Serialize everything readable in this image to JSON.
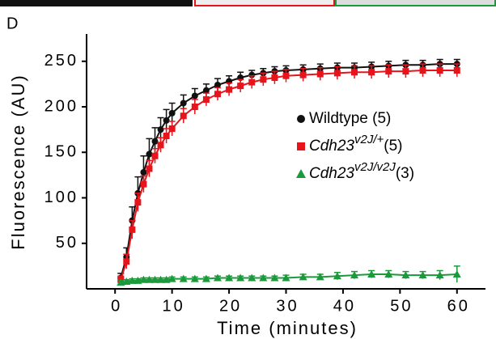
{
  "chart_data": {
    "type": "scatter",
    "panel_label": "D",
    "xlabel": "Time (minutes)",
    "ylabel": "Fluorescence (AU)",
    "xlim": [
      -5,
      65
    ],
    "ylim": [
      0,
      280
    ],
    "xticks": [
      0,
      10,
      20,
      30,
      40,
      50,
      60
    ],
    "yticks": [
      50,
      100,
      150,
      200,
      250
    ],
    "x": [
      1,
      2,
      3,
      4,
      5,
      6,
      7,
      8,
      9,
      10,
      12,
      14,
      16,
      18,
      20,
      22,
      24,
      26,
      28,
      30,
      33,
      36,
      39,
      42,
      45,
      48,
      51,
      54,
      57,
      60
    ],
    "series": [
      {
        "name": "Wildtype (5)",
        "color": "#111111",
        "marker": "circle",
        "values": [
          12,
          35,
          75,
          105,
          128,
          148,
          162,
          175,
          185,
          193,
          204,
          212,
          218,
          224,
          228,
          232,
          235,
          237,
          239,
          240,
          241,
          242,
          243,
          243,
          244,
          245,
          246,
          246,
          247,
          247
        ],
        "errors": [
          5,
          10,
          15,
          18,
          18,
          17,
          15,
          13,
          12,
          11,
          9,
          8,
          7,
          7,
          6,
          6,
          5,
          5,
          5,
          5,
          5,
          5,
          5,
          5,
          5,
          5,
          5,
          5,
          5,
          5
        ]
      },
      {
        "name": "Cdh23",
        "name_sup": "v2J/+",
        "name_suffix": "(5)",
        "color": "#e8141c",
        "marker": "square",
        "values": [
          10,
          30,
          65,
          95,
          115,
          132,
          146,
          158,
          168,
          176,
          190,
          200,
          208,
          214,
          219,
          223,
          227,
          230,
          232,
          234,
          235,
          236,
          237,
          238,
          238,
          239,
          239,
          240,
          240,
          240
        ],
        "errors": [
          4,
          8,
          10,
          10,
          9,
          9,
          8,
          8,
          8,
          8,
          8,
          8,
          7,
          7,
          7,
          7,
          7,
          7,
          7,
          7,
          7,
          7,
          7,
          7,
          7,
          7,
          7,
          7,
          7,
          7
        ]
      },
      {
        "name": "Cdh23",
        "name_sup": "v2J/v2J",
        "name_suffix": "(3)",
        "color": "#1a9a3a",
        "marker": "triangle",
        "values": [
          7,
          8,
          9,
          9,
          10,
          10,
          10,
          10,
          10,
          11,
          11,
          11,
          11,
          12,
          12,
          12,
          12,
          12,
          12,
          12,
          13,
          13,
          14,
          15,
          16,
          16,
          15,
          15,
          15,
          16
        ],
        "errors": [
          2,
          2,
          2,
          2,
          2,
          2,
          2,
          2,
          2,
          2,
          2,
          2,
          2,
          2,
          2,
          2,
          2,
          2,
          2,
          3,
          3,
          3,
          4,
          4,
          4,
          4,
          4,
          4,
          5,
          9
        ]
      }
    ]
  }
}
